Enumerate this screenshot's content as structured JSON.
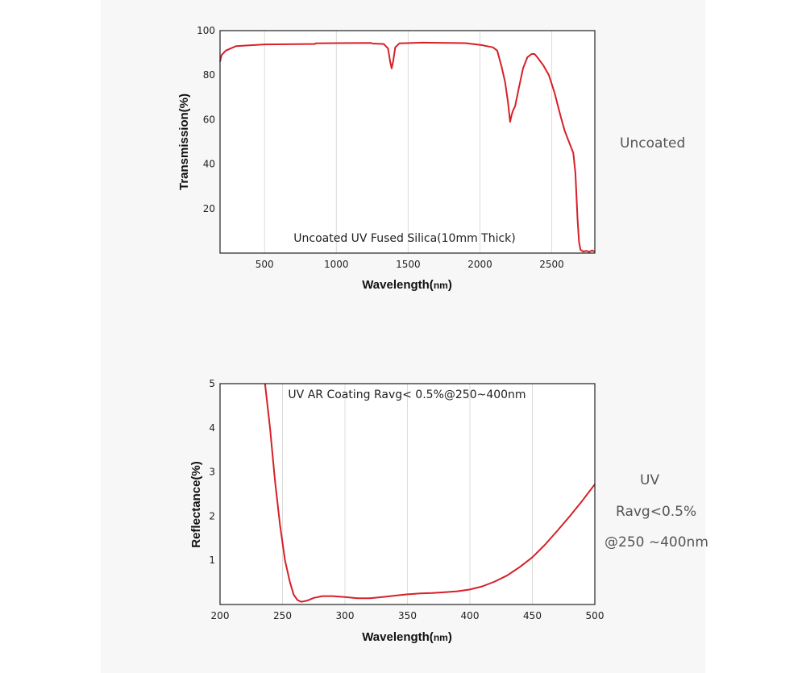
{
  "charts": {
    "top": {
      "chart_data": {
        "type": "line",
        "xlabel": "Wavelength(nm)",
        "xlabel_main": "Wavelength(",
        "xlabel_unit": "nm",
        "xlabel_close": ")",
        "ylabel": "Transmission(%)",
        "annotation": "Uncoated UV Fused Silica(10mm Thick)",
        "xlim": [
          190,
          2800
        ],
        "ylim": [
          0,
          100
        ],
        "xticks": [
          500,
          1000,
          1500,
          2000,
          2500
        ],
        "yticks": [
          20,
          40,
          60,
          80,
          100
        ],
        "grid": true,
        "series": [
          {
            "color": "#d62027",
            "points": [
              [
                190,
                86
              ],
              [
                200,
                89
              ],
              [
                230,
                91
              ],
              [
                300,
                93
              ],
              [
                500,
                93.8
              ],
              [
                850,
                94
              ],
              [
                855,
                94.3
              ],
              [
                1000,
                94.4
              ],
              [
                1240,
                94.5
              ],
              [
                1250,
                94.2
              ],
              [
                1330,
                94
              ],
              [
                1360,
                92
              ],
              [
                1375,
                86
              ],
              [
                1385,
                83
              ],
              [
                1395,
                86
              ],
              [
                1410,
                92.5
              ],
              [
                1440,
                94.3
              ],
              [
                1600,
                94.6
              ],
              [
                1900,
                94.4
              ],
              [
                1950,
                94
              ],
              [
                2010,
                93.5
              ],
              [
                2050,
                93
              ],
              [
                2090,
                92.5
              ],
              [
                2120,
                91
              ],
              [
                2150,
                84
              ],
              [
                2175,
                77
              ],
              [
                2195,
                68
              ],
              [
                2210,
                59
              ],
              [
                2220,
                62
              ],
              [
                2230,
                64
              ],
              [
                2245,
                66
              ],
              [
                2270,
                74
              ],
              [
                2300,
                83
              ],
              [
                2330,
                88
              ],
              [
                2360,
                89.5
              ],
              [
                2380,
                89.5
              ],
              [
                2400,
                88
              ],
              [
                2440,
                84.5
              ],
              [
                2480,
                80
              ],
              [
                2520,
                72
              ],
              [
                2560,
                62
              ],
              [
                2590,
                55
              ],
              [
                2620,
                50
              ],
              [
                2650,
                45
              ],
              [
                2665,
                36
              ],
              [
                2680,
                15
              ],
              [
                2690,
                5
              ],
              [
                2700,
                1.5
              ],
              [
                2720,
                0.7
              ],
              [
                2740,
                1
              ],
              [
                2760,
                0.5
              ],
              [
                2780,
                1.2
              ],
              [
                2800,
                0.6
              ]
            ]
          }
        ]
      }
    },
    "bottom": {
      "chart_data": {
        "type": "line",
        "xlabel": "Wavelength(nm)",
        "xlabel_main": "Wavelength(",
        "xlabel_unit": "nm",
        "xlabel_close": ")",
        "ylabel": "Reflectance(%)",
        "annotation": "UV AR Coating Ravg< 0.5%@250~400nm",
        "xlim": [
          200,
          500
        ],
        "ylim": [
          0,
          5
        ],
        "xticks": [
          200,
          250,
          300,
          350,
          400,
          450,
          500
        ],
        "yticks": [
          1,
          2,
          3,
          4,
          5
        ],
        "grid": true,
        "series": [
          {
            "color": "#d62027",
            "points": [
              [
                236,
                5
              ],
              [
                240,
                4
              ],
              [
                244,
                2.8
              ],
              [
                248,
                1.8
              ],
              [
                252,
                1
              ],
              [
                256,
                0.5
              ],
              [
                259,
                0.22
              ],
              [
                262,
                0.1
              ],
              [
                265,
                0.06
              ],
              [
                270,
                0.09
              ],
              [
                275,
                0.15
              ],
              [
                282,
                0.19
              ],
              [
                290,
                0.19
              ],
              [
                300,
                0.17
              ],
              [
                310,
                0.14
              ],
              [
                320,
                0.14
              ],
              [
                330,
                0.17
              ],
              [
                340,
                0.2
              ],
              [
                350,
                0.23
              ],
              [
                360,
                0.25
              ],
              [
                370,
                0.26
              ],
              [
                380,
                0.28
              ],
              [
                390,
                0.3
              ],
              [
                400,
                0.34
              ],
              [
                410,
                0.41
              ],
              [
                420,
                0.52
              ],
              [
                430,
                0.66
              ],
              [
                440,
                0.85
              ],
              [
                450,
                1.07
              ],
              [
                460,
                1.35
              ],
              [
                470,
                1.67
              ],
              [
                480,
                2
              ],
              [
                490,
                2.35
              ],
              [
                500,
                2.72
              ]
            ]
          }
        ]
      }
    }
  },
  "side_labels": {
    "top": "Uncoated",
    "bottom_line1": "UV",
    "bottom_line2": "Ravg<0.5%",
    "bottom_line3": "@250 ~400nm"
  }
}
